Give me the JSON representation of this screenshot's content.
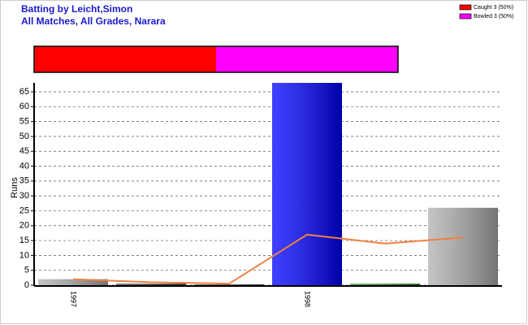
{
  "chart_data": [
    {
      "type": "stacked_hbar",
      "title": "Batting by Leicht,Simon",
      "subtitle": "All Matches, All Grades, Narara",
      "series": [
        {
          "name": "Caught 3 (50%)",
          "color": "#ff0000",
          "values": [
            3
          ]
        },
        {
          "name": "Bowled 3 (50%)",
          "color": "#ff00ff",
          "values": [
            3
          ]
        }
      ],
      "xlim": [
        0,
        6
      ]
    },
    {
      "type": "bar",
      "ylabel": "Runs",
      "categories": [
        "1997",
        null,
        null,
        "1998",
        null,
        null
      ],
      "values": [
        2,
        0.5,
        0,
        68,
        0.5,
        26
      ],
      "colors": [
        "#b0b0b0",
        "#404040",
        "#404040",
        "#0000ff",
        "#2e8b2e",
        "#b0b0b0"
      ],
      "line_values": [
        2,
        1,
        0.5,
        17,
        14,
        16
      ],
      "line_color": "#f08040",
      "ylim": [
        0,
        68
      ],
      "yticks": [
        0,
        5,
        10,
        15,
        20,
        25,
        30,
        35,
        40,
        45,
        50,
        55,
        60,
        65
      ],
      "grid": true
    }
  ]
}
